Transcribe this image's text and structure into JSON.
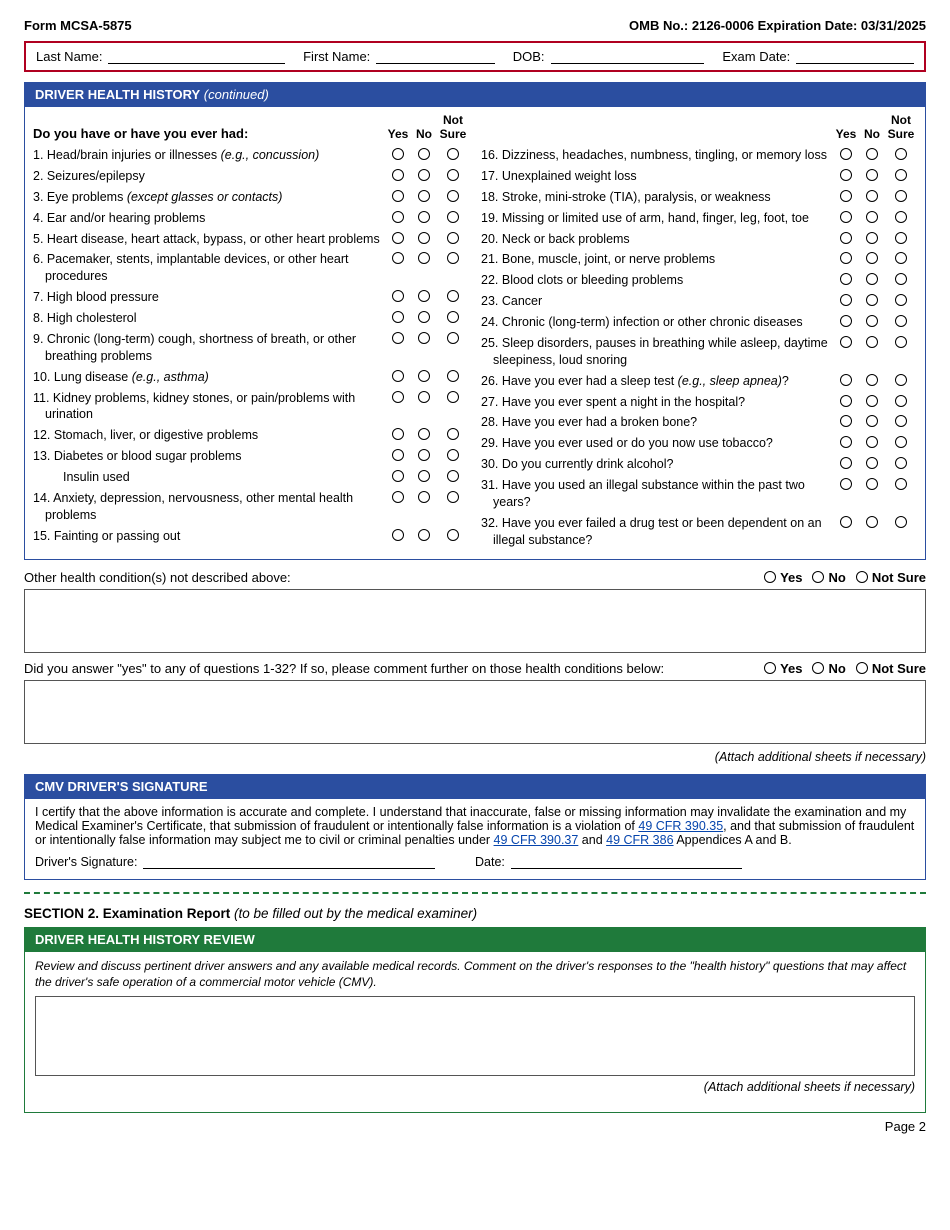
{
  "header": {
    "form_no": "Form MCSA-5875",
    "omb": "OMB No.: 2126-0006  Expiration Date: 03/31/2025"
  },
  "id_fields": {
    "last_name": "Last Name:",
    "first_name": "First Name:",
    "dob": "DOB:",
    "exam_date": "Exam Date:"
  },
  "hh_bar": {
    "title": "DRIVER HEALTH HISTORY",
    "sub": " (continued)"
  },
  "prompt": "Do you have or have you ever had:",
  "opts": {
    "yes": "Yes",
    "no": "No",
    "not_sure": "Not Sure",
    "not_sure_hdr1": "Not",
    "not_sure_hdr2": "Sure"
  },
  "col1": [
    {
      "n": "1.",
      "t": "Head/brain injuries or illnesses ",
      "em": "(e.g., concussion)"
    },
    {
      "n": "2.",
      "t": "Seizures/epilepsy"
    },
    {
      "n": "3.",
      "t": "Eye problems ",
      "em": "(except glasses or contacts)"
    },
    {
      "n": "4.",
      "t": "Ear and/or hearing problems"
    },
    {
      "n": "5.",
      "t": "Heart disease, heart attack, bypass, or other heart problems"
    },
    {
      "n": "6.",
      "t": "Pacemaker, stents, implantable devices, or other heart procedures"
    },
    {
      "n": "7.",
      "t": "High blood pressure"
    },
    {
      "n": "8.",
      "t": "High cholesterol"
    },
    {
      "n": "9.",
      "t": "Chronic (long-term) cough, shortness of breath, or other breathing problems"
    },
    {
      "n": "10.",
      "t": "Lung disease ",
      "em": "(e.g., asthma)"
    },
    {
      "n": "11.",
      "t": "Kidney problems, kidney stones, or pain/problems with urination"
    },
    {
      "n": "12.",
      "t": "Stomach, liver, or digestive problems"
    },
    {
      "n": "13.",
      "t": "Diabetes or blood sugar problems"
    },
    {
      "n": "",
      "t": "Insulin used",
      "indent": true
    },
    {
      "n": "14.",
      "t": "Anxiety, depression, nervousness, other mental health problems"
    },
    {
      "n": "15.",
      "t": "Fainting or passing out"
    }
  ],
  "col2": [
    {
      "n": "16.",
      "t": "Dizziness, headaches, numbness, tingling, or memory loss"
    },
    {
      "n": "17.",
      "t": "Unexplained weight loss"
    },
    {
      "n": "18.",
      "t": "Stroke, mini-stroke (TIA), paralysis, or weakness"
    },
    {
      "n": "19.",
      "t": "Missing or limited use of arm, hand, finger, leg, foot, toe"
    },
    {
      "n": "20.",
      "t": "Neck or back problems"
    },
    {
      "n": "21.",
      "t": "Bone, muscle, joint, or nerve problems"
    },
    {
      "n": "22.",
      "t": "Blood clots or bleeding problems"
    },
    {
      "n": "23.",
      "t": "Cancer"
    },
    {
      "n": "24.",
      "t": "Chronic (long-term) infection or other chronic diseases"
    },
    {
      "n": "25.",
      "t": "Sleep disorders, pauses in breathing while asleep, daytime sleepiness, loud snoring"
    },
    {
      "n": "26.",
      "t": "Have you ever had a sleep test ",
      "em": "(e.g., sleep apnea)",
      "tail": "?"
    },
    {
      "n": "27.",
      "t": "Have you ever spent a night in the hospital?"
    },
    {
      "n": "28.",
      "t": "Have you ever had a broken bone?"
    },
    {
      "n": "29.",
      "t": "Have you ever used or do you now use tobacco?"
    },
    {
      "n": "30.",
      "t": "Do you currently drink alcohol?"
    },
    {
      "n": "31.",
      "t": "Have you used an illegal substance within the past two years?"
    },
    {
      "n": "32.",
      "t": "Have you ever failed a drug test or been dependent on an illegal substance?"
    }
  ],
  "other_label": "Other health condition(s) not described above:",
  "comment_label": "Did you answer \"yes\" to any of questions 1-32? If so, please comment further on those health conditions below:",
  "attach_note": "(Attach additional sheets if necessary)",
  "sig_bar": "CMV DRIVER'S SIGNATURE",
  "sig_text_1": "I certify that the above information is accurate and complete. I understand that inaccurate, false or missing information may invalidate the examination and my Medical Examiner's Certificate, that submission of fraudulent or intentionally false information is a violation of ",
  "sig_link_1": "49 CFR 390.35",
  "sig_text_2": ", and that submission of fraudulent or intentionally false information may subject me to civil or criminal penalties under ",
  "sig_link_2": "49 CFR 390.37",
  "sig_text_3": " and ",
  "sig_link_3": "49 CFR 386",
  "sig_text_4": " Appendices A and B.",
  "sig_field": "Driver's Signature:",
  "date_field": "Date:",
  "sec2_bold": "SECTION 2. Examination Report",
  "sec2_sub": " (to be filled out by the medical examiner)",
  "review_bar": "DRIVER HEALTH HISTORY REVIEW",
  "review_instr": "Review and discuss pertinent driver answers and any available medical records. Comment on the driver's responses to the \"health history\" questions that may affect the driver's safe operation of a commercial motor vehicle (CMV).",
  "page_num": "Page 2",
  "colors": {
    "blue": "#2b4ea0",
    "green": "#1f7a3b",
    "red": "#b00020",
    "link": "#0645ad"
  }
}
